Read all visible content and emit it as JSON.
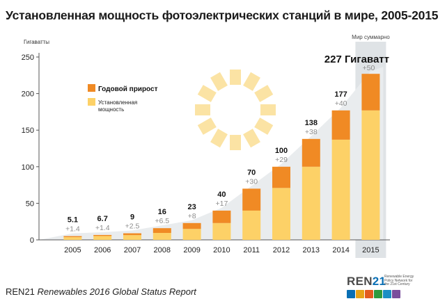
{
  "title": "Установленная мощность фотоэлектрических станций в мире, 2005-2015",
  "footer": {
    "source": "REN21",
    "report": "Renewables 2016 Global Status Report"
  },
  "logo": {
    "text_main": "REN",
    "text_accent": "21",
    "tagline": "Renewable Energy Policy Network for the 21st Century",
    "icon_colors": [
      "#0a6fb4",
      "#e8a317",
      "#e35b1e",
      "#2e9a3d",
      "#1a8fc4",
      "#7a4e9c"
    ]
  },
  "colors": {
    "annual": "#f08a24",
    "installed": "#fdd167",
    "highlight_band": "#dfe3e6",
    "area": "#e9ecee",
    "axis": "#555555",
    "sun": "#fbe3a4",
    "increment_text": "#8c8c8c"
  },
  "chart_data": {
    "type": "bar",
    "stacked": true,
    "categories": [
      "2005",
      "2006",
      "2007",
      "2008",
      "2009",
      "2010",
      "2011",
      "2012",
      "2013",
      "2014",
      "2015"
    ],
    "series": [
      {
        "name": "Установленная мощность",
        "values": [
          3.7,
          5.3,
          6.5,
          9.5,
          15,
          23,
          40,
          71,
          100,
          137,
          177
        ]
      },
      {
        "name": "Годовой прирост",
        "values": [
          1.4,
          1.4,
          2.5,
          6.5,
          8,
          17,
          30,
          29,
          38,
          40,
          50
        ]
      }
    ],
    "totals": [
      5.1,
      6.7,
      9,
      16,
      23,
      40,
      70,
      100,
      138,
      177,
      227
    ],
    "total_labels": [
      "5.1",
      "6.7",
      "9",
      "16",
      "23",
      "40",
      "70",
      "100",
      "138",
      "177",
      "227 Гигаватт"
    ],
    "increment_labels": [
      "+1.4",
      "+1.4",
      "+2.5",
      "+6.5",
      "+8",
      "+17",
      "+30",
      "+29",
      "+38",
      "+40",
      "+50"
    ],
    "ylabel": "Гигаватты",
    "ylim": [
      0,
      250
    ],
    "yticks": [
      0,
      50,
      100,
      150,
      200,
      250
    ],
    "grid": false,
    "highlight_label": "Мир суммарно",
    "highlight_category": "2015",
    "legend_position": "upper-left"
  }
}
